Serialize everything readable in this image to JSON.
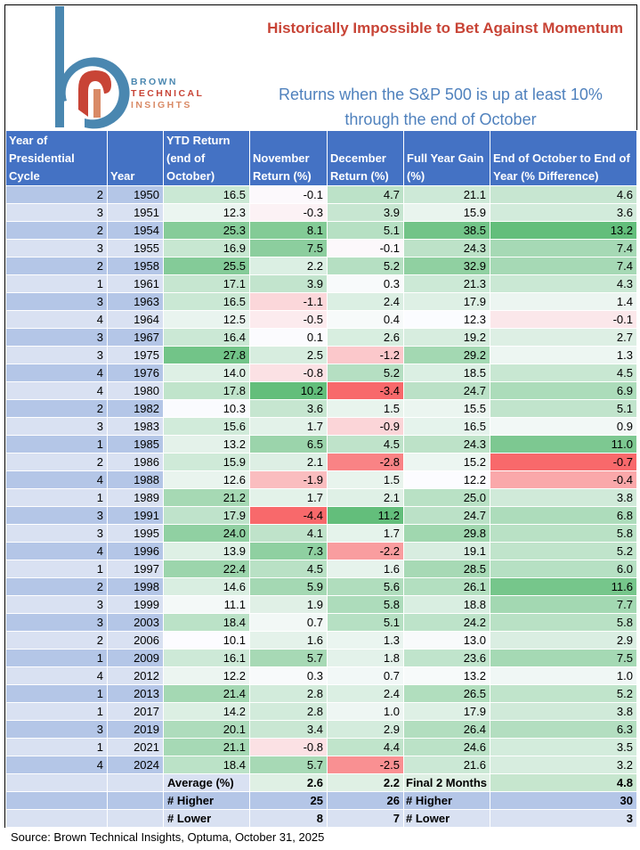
{
  "brand": {
    "line1": "BROWN",
    "line2": "TECHNICAL",
    "line3": "INSIGHTS",
    "colors": {
      "blue": "#4a87b0",
      "red": "#c84436",
      "salmon": "#d98a66"
    }
  },
  "title": "Historically Impossible to Bet Against Momentum",
  "subtitle": "Returns when the S&P 500 is up at least 10% through the end of October",
  "table": {
    "headers": [
      "Year of Presidential Cycle",
      "Year",
      "YTD Return (end of October)",
      "November Return (%)",
      "December Return (%)",
      "Full Year Gain (%)",
      "End of October to End of Year (% Difference)"
    ],
    "rows": [
      {
        "cycle": "2",
        "year": "1950",
        "ytd": "16.5",
        "nov": "-0.1",
        "dec": "4.7",
        "full": "21.1",
        "diff": "4.6"
      },
      {
        "cycle": "3",
        "year": "1951",
        "ytd": "12.3",
        "nov": "-0.3",
        "dec": "3.9",
        "full": "15.9",
        "diff": "3.6"
      },
      {
        "cycle": "2",
        "year": "1954",
        "ytd": "25.3",
        "nov": "8.1",
        "dec": "5.1",
        "full": "38.5",
        "diff": "13.2"
      },
      {
        "cycle": "3",
        "year": "1955",
        "ytd": "16.9",
        "nov": "7.5",
        "dec": "-0.1",
        "full": "24.3",
        "diff": "7.4"
      },
      {
        "cycle": "2",
        "year": "1958",
        "ytd": "25.5",
        "nov": "2.2",
        "dec": "5.2",
        "full": "32.9",
        "diff": "7.4"
      },
      {
        "cycle": "1",
        "year": "1961",
        "ytd": "17.1",
        "nov": "3.9",
        "dec": "0.3",
        "full": "21.3",
        "diff": "4.3"
      },
      {
        "cycle": "3",
        "year": "1963",
        "ytd": "16.5",
        "nov": "-1.1",
        "dec": "2.4",
        "full": "17.9",
        "diff": "1.4"
      },
      {
        "cycle": "4",
        "year": "1964",
        "ytd": "12.5",
        "nov": "-0.5",
        "dec": "0.4",
        "full": "12.3",
        "diff": "-0.1"
      },
      {
        "cycle": "3",
        "year": "1967",
        "ytd": "16.4",
        "nov": "0.1",
        "dec": "2.6",
        "full": "19.2",
        "diff": "2.7"
      },
      {
        "cycle": "3",
        "year": "1975",
        "ytd": "27.8",
        "nov": "2.5",
        "dec": "-1.2",
        "full": "29.2",
        "diff": "1.3"
      },
      {
        "cycle": "4",
        "year": "1976",
        "ytd": "14.0",
        "nov": "-0.8",
        "dec": "5.2",
        "full": "18.5",
        "diff": "4.5"
      },
      {
        "cycle": "4",
        "year": "1980",
        "ytd": "17.8",
        "nov": "10.2",
        "dec": "-3.4",
        "full": "24.7",
        "diff": "6.9"
      },
      {
        "cycle": "2",
        "year": "1982",
        "ytd": "10.3",
        "nov": "3.6",
        "dec": "1.5",
        "full": "15.5",
        "diff": "5.1"
      },
      {
        "cycle": "3",
        "year": "1983",
        "ytd": "15.6",
        "nov": "1.7",
        "dec": "-0.9",
        "full": "16.5",
        "diff": "0.9"
      },
      {
        "cycle": "1",
        "year": "1985",
        "ytd": "13.2",
        "nov": "6.5",
        "dec": "4.5",
        "full": "24.3",
        "diff": "11.0"
      },
      {
        "cycle": "2",
        "year": "1986",
        "ytd": "15.9",
        "nov": "2.1",
        "dec": "-2.8",
        "full": "15.2",
        "diff": "-0.7"
      },
      {
        "cycle": "4",
        "year": "1988",
        "ytd": "12.6",
        "nov": "-1.9",
        "dec": "1.5",
        "full": "12.2",
        "diff": "-0.4"
      },
      {
        "cycle": "1",
        "year": "1989",
        "ytd": "21.2",
        "nov": "1.7",
        "dec": "2.1",
        "full": "25.0",
        "diff": "3.8"
      },
      {
        "cycle": "3",
        "year": "1991",
        "ytd": "17.9",
        "nov": "-4.4",
        "dec": "11.2",
        "full": "24.7",
        "diff": "6.8"
      },
      {
        "cycle": "3",
        "year": "1995",
        "ytd": "24.0",
        "nov": "4.1",
        "dec": "1.7",
        "full": "29.8",
        "diff": "5.8"
      },
      {
        "cycle": "4",
        "year": "1996",
        "ytd": "13.9",
        "nov": "7.3",
        "dec": "-2.2",
        "full": "19.1",
        "diff": "5.2"
      },
      {
        "cycle": "1",
        "year": "1997",
        "ytd": "22.4",
        "nov": "4.5",
        "dec": "1.6",
        "full": "28.5",
        "diff": "6.0"
      },
      {
        "cycle": "2",
        "year": "1998",
        "ytd": "14.6",
        "nov": "5.9",
        "dec": "5.6",
        "full": "26.1",
        "diff": "11.6"
      },
      {
        "cycle": "3",
        "year": "1999",
        "ytd": "11.1",
        "nov": "1.9",
        "dec": "5.8",
        "full": "18.8",
        "diff": "7.7"
      },
      {
        "cycle": "3",
        "year": "2003",
        "ytd": "18.4",
        "nov": "0.7",
        "dec": "5.1",
        "full": "24.2",
        "diff": "5.8"
      },
      {
        "cycle": "2",
        "year": "2006",
        "ytd": "10.1",
        "nov": "1.6",
        "dec": "1.3",
        "full": "13.0",
        "diff": "2.9"
      },
      {
        "cycle": "1",
        "year": "2009",
        "ytd": "16.1",
        "nov": "5.7",
        "dec": "1.8",
        "full": "23.6",
        "diff": "7.5"
      },
      {
        "cycle": "4",
        "year": "2012",
        "ytd": "12.2",
        "nov": "0.3",
        "dec": "0.7",
        "full": "13.2",
        "diff": "1.0"
      },
      {
        "cycle": "1",
        "year": "2013",
        "ytd": "21.4",
        "nov": "2.8",
        "dec": "2.4",
        "full": "26.5",
        "diff": "5.2"
      },
      {
        "cycle": "1",
        "year": "2017",
        "ytd": "14.2",
        "nov": "2.8",
        "dec": "1.0",
        "full": "17.9",
        "diff": "3.8"
      },
      {
        "cycle": "3",
        "year": "2019",
        "ytd": "20.1",
        "nov": "3.4",
        "dec": "2.9",
        "full": "26.4",
        "diff": "6.3"
      },
      {
        "cycle": "1",
        "year": "2021",
        "ytd": "21.1",
        "nov": "-0.8",
        "dec": "4.4",
        "full": "24.6",
        "diff": "3.5"
      },
      {
        "cycle": "4",
        "year": "2024",
        "ytd": "18.4",
        "nov": "5.7",
        "dec": "-2.5",
        "full": "21.6",
        "diff": "3.2"
      }
    ],
    "summary": [
      {
        "label": "Average (%)",
        "nov": "2.6",
        "dec": "2.2",
        "label2": "Final 2 Months",
        "val2": "4.8"
      },
      {
        "label": "# Higher",
        "nov": "25",
        "dec": "26",
        "label2": "# Higher",
        "val2": "30"
      },
      {
        "label": "# Lower",
        "nov": "8",
        "dec": "7",
        "label2": "# Lower",
        "val2": "3"
      }
    ]
  },
  "heat_colors": {
    "green": "#63be7b",
    "white": "#fcfcff",
    "red": "#f8696b"
  },
  "source": "Source: Brown Technical Insights, Optuma, October 31, 2025"
}
